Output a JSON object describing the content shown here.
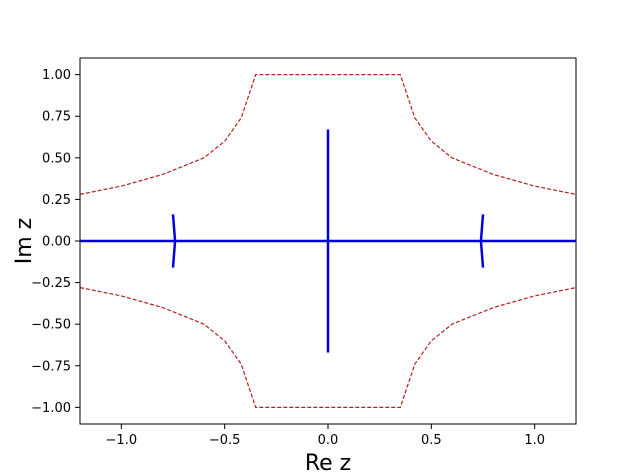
{
  "chart_data": {
    "type": "line",
    "title": "",
    "xlabel": "Re z",
    "ylabel": "Im z",
    "xlim": [
      -1.2,
      1.2
    ],
    "ylim": [
      -1.1,
      1.1
    ],
    "xticks": [
      -1.0,
      -0.5,
      0.0,
      0.5,
      1.0
    ],
    "xtick_labels": [
      "−1.0",
      "−0.5",
      "0.0",
      "0.5",
      "1.0"
    ],
    "yticks": [
      1.0,
      0.75,
      0.5,
      0.25,
      0.0,
      -0.25,
      -0.5,
      -0.75,
      -1.0
    ],
    "ytick_labels": [
      "1.00",
      "0.75",
      "0.50",
      "0.25",
      "0.00",
      "−0.25",
      "−0.50",
      "−0.75",
      "−1.00"
    ],
    "grid": false,
    "legend": "none",
    "series": [
      {
        "style": "solid",
        "color": "#0000dd",
        "x": [
          -1.2,
          1.2
        ],
        "y": [
          0.0,
          0.0
        ]
      },
      {
        "style": "solid",
        "color": "#0000dd",
        "x": [
          0.0,
          0.0
        ],
        "y": [
          0.67,
          -0.67
        ]
      },
      {
        "style": "solid",
        "color": "#0000dd",
        "x": [
          -0.75,
          -0.745,
          -0.74,
          -0.745,
          -0.75
        ],
        "y": [
          0.16,
          0.08,
          0.0,
          -0.08,
          -0.16
        ]
      },
      {
        "style": "solid",
        "color": "#0000dd",
        "x": [
          0.75,
          0.745,
          0.74,
          0.745,
          0.75
        ],
        "y": [
          0.16,
          0.08,
          0.0,
          -0.08,
          -0.16
        ]
      },
      {
        "style": "dashed",
        "color": "#b22222",
        "x": [
          -1.2,
          -1.0,
          -0.8,
          -0.6,
          -0.5,
          -0.42,
          -0.35,
          0.35,
          0.42,
          0.5,
          0.6,
          0.8,
          1.0,
          1.2
        ],
        "y": [
          0.28,
          0.33,
          0.4,
          0.5,
          0.6,
          0.74,
          1.0,
          1.0,
          0.74,
          0.6,
          0.5,
          0.4,
          0.33,
          0.28
        ]
      },
      {
        "style": "dashed",
        "color": "#b22222",
        "x": [
          -1.2,
          -1.0,
          -0.8,
          -0.6,
          -0.5,
          -0.42,
          -0.35,
          0.35,
          0.42,
          0.5,
          0.6,
          0.8,
          1.0,
          1.2
        ],
        "y": [
          -0.28,
          -0.33,
          -0.4,
          -0.5,
          -0.6,
          -0.74,
          -1.0,
          -1.0,
          -0.74,
          -0.6,
          -0.5,
          -0.4,
          -0.33,
          -0.28
        ]
      }
    ]
  }
}
